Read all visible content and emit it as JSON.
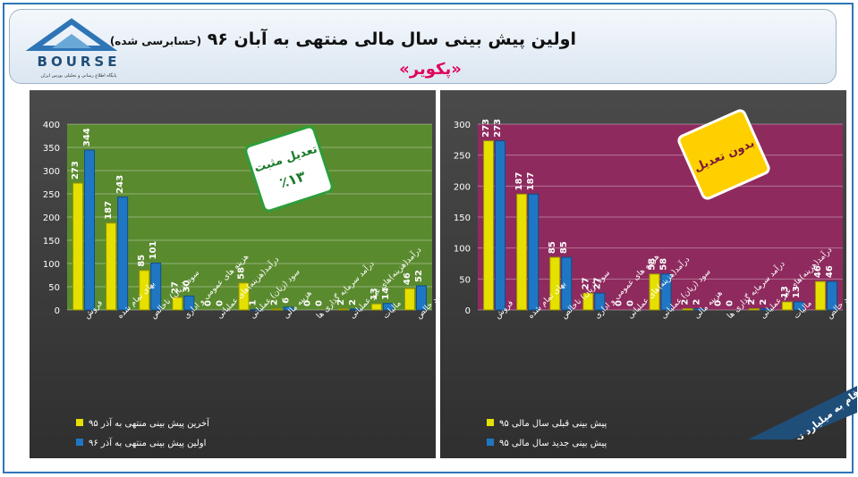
{
  "header": {
    "title_main": "اولین پیش بینی سال مالی منتهی به آبان ۹۶",
    "title_note": "(حسابرسی شده)",
    "subtitle": "«پکویر»",
    "logo_text": "BOURSE",
    "logo_caption": "پایگاه اطلاع رسانی و تحلیلی بورس ایران"
  },
  "side_note": "ارقام به میلیارد تومان",
  "colors": {
    "left_bg": "#5a8a2e",
    "right_bg": "#8e2a5e",
    "yellow": "#e6e000",
    "blue": "#1f77c4",
    "header_red": "#e0005a"
  },
  "chart_data": [
    {
      "type": "bar",
      "categories": [
        "فروش",
        "بهای تمام شده",
        "سود (زیان) ناخالص",
        "هزینه های عمومی و اداری",
        "درآمد(هزینه)های عملیاتی",
        "سود (زیان) عملیاتی",
        "هزینه مالی",
        "درآمد سرمایه گذاری ها",
        "درآمد(هزینه)های غیر عملیاتی",
        "مالیات",
        "سود خالص"
      ],
      "series": [
        {
          "name": "آخرین پیش بینی منتهی به آذر ۹۵",
          "values": [
            273,
            187,
            85,
            27,
            0,
            58,
            2,
            0,
            2,
            13,
            46
          ]
        },
        {
          "name": "اولین پیش بینی منتهی به آذر ۹۶",
          "values": [
            344,
            243,
            101,
            30,
            0,
            1,
            6,
            0,
            2,
            14,
            52
          ]
        }
      ],
      "data_labels": [
        [
          "273",
          "187",
          "85",
          "27",
          "0",
          "58",
          "2",
          "0",
          "2",
          "13",
          "46"
        ],
        [
          "344",
          "243",
          "101",
          "30",
          "0",
          "1",
          "6",
          "0",
          "2",
          "14",
          "52"
        ]
      ],
      "ylim": [
        0,
        400
      ],
      "yticks": [
        "0",
        "50",
        "100",
        "150",
        "200",
        "250",
        "300",
        "350",
        "400"
      ],
      "grid": true,
      "legend_position": "bottom-left",
      "callout": {
        "line1": "تعدیل مثبت",
        "line2": "٪۱۳"
      }
    },
    {
      "type": "bar",
      "categories": [
        "فروش",
        "بهای تمام شده",
        "سود (زیان) ناخالص",
        "هزینه های عمومی و اداری",
        "درآمد(هزینه)های عملیاتی",
        "سود (زیان) عملیاتی",
        "هزینه مالی",
        "درآمد سرمایه گذاری ها",
        "درآمد(هزینه)های غیر عملیاتی",
        "مالیات",
        "سود خالص"
      ],
      "series": [
        {
          "name": "پیش بینی قبلی سال مالی ۹۵",
          "values": [
            273,
            187,
            85,
            27,
            0,
            58,
            2,
            0,
            2,
            13,
            46
          ]
        },
        {
          "name": "پیش بینی جدید سال مالی ۹۵",
          "values": [
            273,
            187,
            85,
            27,
            0,
            58,
            2,
            0,
            2,
            13,
            46
          ]
        }
      ],
      "data_labels": [
        [
          "273",
          "187",
          "85",
          "27",
          "0",
          "58",
          "2",
          "0",
          "2",
          "13",
          "46"
        ],
        [
          "273",
          "187",
          "85",
          "27",
          "0",
          "58",
          "2",
          "0",
          "2",
          "13",
          "46"
        ]
      ],
      "ylim": [
        0,
        300
      ],
      "yticks": [
        "0",
        "50",
        "100",
        "150",
        "200",
        "250",
        "300"
      ],
      "grid": true,
      "legend_position": "bottom-left",
      "callout": {
        "line1": "بدون تعدیل",
        "line2": ""
      }
    }
  ]
}
